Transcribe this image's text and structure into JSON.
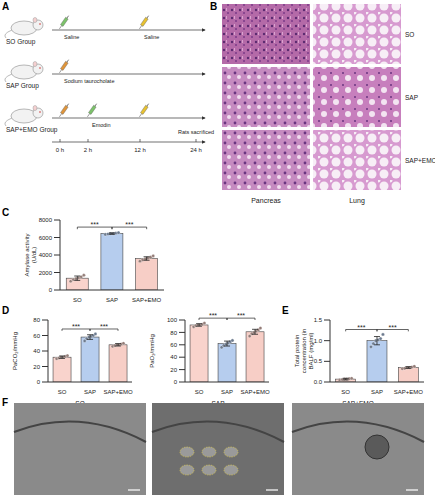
{
  "panel_labels": [
    "A",
    "B",
    "C",
    "D",
    "E",
    "F"
  ],
  "schematic": {
    "groups": [
      {
        "name": "SO Group",
        "notes": [
          {
            "text": "Saline",
            "at": "0 h"
          },
          {
            "text": "Saline",
            "at": "12 h"
          }
        ]
      },
      {
        "name": "SAP Group",
        "notes": [
          {
            "text": "Sodium taurocholate",
            "at": "0 h"
          }
        ]
      },
      {
        "name": "SAP+EMO Group",
        "notes": [
          {
            "text": "Emodin",
            "at": "2 h"
          }
        ]
      }
    ],
    "times": [
      "0 h",
      "2 h",
      "12 h",
      "24 h"
    ],
    "endpoint": "Rats sacrificed"
  },
  "histology": {
    "columns": [
      "Pancreas",
      "Lung"
    ],
    "rows": [
      "SO",
      "SAP",
      "SAP+EMO"
    ]
  },
  "tem": {
    "labels": [
      "SO",
      "SAP",
      "SAP+EMO"
    ]
  },
  "chart_data": [
    {
      "type": "bar",
      "ylabel": "Amylase activity (U/dL)",
      "categories": [
        "SO",
        "SAP",
        "SAP+EMO"
      ],
      "values": [
        1350,
        6450,
        3600
      ],
      "errors": [
        250,
        80,
        200
      ],
      "points": [
        [
          1000,
          1200,
          1300,
          1400,
          1500,
          1700
        ],
        [
          6350,
          6400,
          6450,
          6450,
          6500,
          6550
        ],
        [
          3300,
          3450,
          3550,
          3650,
          3750,
          3900
        ]
      ],
      "colors": [
        "#f9d3cc",
        "#b6cdee",
        "#f7cec6"
      ],
      "ylim": [
        0,
        8000
      ],
      "yticks": [
        0,
        2000,
        4000,
        6000,
        8000
      ],
      "grid": false,
      "significance": [
        {
          "from": "SO",
          "to": "SAP",
          "label": "***"
        },
        {
          "from": "SAP",
          "to": "SAP+EMO",
          "label": "***"
        }
      ]
    },
    {
      "type": "bar",
      "ylabel": "PaCO₂/mmHg",
      "categories": [
        "SO",
        "SAP",
        "SAP+EMO"
      ],
      "values": [
        32,
        58,
        48
      ],
      "errors": [
        1.5,
        3,
        1.5
      ],
      "points": [
        [
          30,
          31,
          32,
          32,
          33,
          34
        ],
        [
          53,
          56,
          58,
          59,
          60,
          62
        ],
        [
          46,
          47,
          48,
          48,
          49,
          50
        ]
      ],
      "colors": [
        "#f9d3cc",
        "#b6cdee",
        "#f7cec6"
      ],
      "ylim": [
        0,
        80
      ],
      "yticks": [
        0,
        20,
        40,
        60,
        80
      ],
      "grid": false,
      "significance": [
        {
          "from": "SO",
          "to": "SAP",
          "label": "***"
        },
        {
          "from": "SAP",
          "to": "SAP+EMO",
          "label": "***"
        }
      ]
    },
    {
      "type": "bar",
      "ylabel": "PaO₂/mmHg",
      "categories": [
        "SO",
        "SAP",
        "SAP+EMO"
      ],
      "values": [
        92,
        62,
        81
      ],
      "errors": [
        2,
        4,
        4
      ],
      "points": [
        [
          89,
          91,
          92,
          92,
          93,
          95
        ],
        [
          56,
          59,
          61,
          63,
          65,
          67
        ],
        [
          74,
          78,
          80,
          82,
          84,
          87
        ]
      ],
      "colors": [
        "#f9d3cc",
        "#b6cdee",
        "#f7cec6"
      ],
      "ylim": [
        0,
        100
      ],
      "yticks": [
        0,
        20,
        40,
        60,
        80,
        100
      ],
      "grid": false,
      "significance": [
        {
          "from": "SO",
          "to": "SAP",
          "label": "***"
        },
        {
          "from": "SAP",
          "to": "SAP+EMO",
          "label": "***"
        }
      ]
    },
    {
      "type": "bar",
      "ylabel": "Total protein concentration (in BALF (mg/ml)",
      "categories": [
        "SO",
        "SAP",
        "SAP+EMO"
      ],
      "values": [
        0.07,
        1.0,
        0.35
      ],
      "errors": [
        0.02,
        0.1,
        0.02
      ],
      "points": [
        [
          0.05,
          0.06,
          0.07,
          0.07,
          0.08,
          0.09
        ],
        [
          0.85,
          0.93,
          1.0,
          1.02,
          1.05,
          1.15
        ],
        [
          0.32,
          0.33,
          0.35,
          0.35,
          0.36,
          0.38
        ]
      ],
      "colors": [
        "#f9d3cc",
        "#b6cdee",
        "#f7cec6"
      ],
      "ylim": [
        0,
        1.5
      ],
      "yticks": [
        {
          "value": 0,
          "label": "0.0"
        },
        0.5,
        {
          "value": 1,
          "label": "1.0"
        },
        1.5
      ],
      "grid": false,
      "significance": [
        {
          "from": "SO",
          "to": "SAP",
          "label": "***"
        },
        {
          "from": "SAP",
          "to": "SAP+EMO",
          "label": "***"
        }
      ]
    }
  ]
}
